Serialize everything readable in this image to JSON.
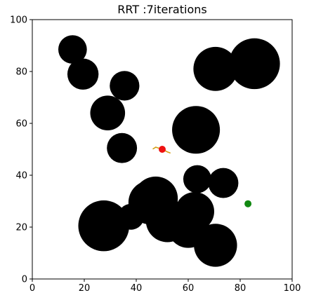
{
  "chart_data": {
    "type": "scatter",
    "title": "RRT :7iterations",
    "xlabel": "",
    "ylabel": "",
    "xlim": [
      0,
      100
    ],
    "ylim": [
      0,
      100
    ],
    "xticks": [
      0,
      20,
      40,
      60,
      80,
      100
    ],
    "yticks": [
      0,
      20,
      40,
      60,
      80,
      100
    ],
    "tick_labels": {
      "x": [
        "0",
        "20",
        "40",
        "60",
        "80",
        "100"
      ],
      "y": [
        "0",
        "20",
        "40",
        "60",
        "80",
        "100"
      ]
    },
    "grid": false,
    "obstacles": [
      {
        "x": 15.5,
        "y": 88.5,
        "r": 5.5
      },
      {
        "x": 19.5,
        "y": 79.0,
        "r": 6.0
      },
      {
        "x": 35.5,
        "y": 74.5,
        "r": 5.7
      },
      {
        "x": 29.0,
        "y": 64.0,
        "r": 6.7
      },
      {
        "x": 34.5,
        "y": 50.5,
        "r": 5.8
      },
      {
        "x": 70.5,
        "y": 81.0,
        "r": 8.5
      },
      {
        "x": 85.5,
        "y": 83.0,
        "r": 9.8
      },
      {
        "x": 63.0,
        "y": 57.5,
        "r": 9.2
      },
      {
        "x": 63.5,
        "y": 38.5,
        "r": 5.4
      },
      {
        "x": 73.5,
        "y": 37.0,
        "r": 5.8
      },
      {
        "x": 27.5,
        "y": 20.5,
        "r": 9.8
      },
      {
        "x": 38.0,
        "y": 24.0,
        "r": 5.0
      },
      {
        "x": 45.5,
        "y": 29.5,
        "r": 8.5
      },
      {
        "x": 47.5,
        "y": 31.0,
        "r": 8.5
      },
      {
        "x": 52.0,
        "y": 22.5,
        "r": 8.3
      },
      {
        "x": 60.0,
        "y": 20.0,
        "r": 8.0
      },
      {
        "x": 62.5,
        "y": 26.0,
        "r": 7.5
      },
      {
        "x": 70.5,
        "y": 13.0,
        "r": 8.3
      }
    ],
    "start": {
      "x": 50.0,
      "y": 50.0,
      "color": "#ee1111"
    },
    "goal": {
      "x": 83.0,
      "y": 29.0,
      "color": "#118811"
    },
    "tree_edges": [
      {
        "x1": 50.0,
        "y1": 50.0,
        "x2": 47.5,
        "y2": 50.8
      },
      {
        "x1": 47.5,
        "y1": 50.8,
        "x2": 46.5,
        "y2": 50.2
      },
      {
        "x1": 50.0,
        "y1": 50.0,
        "x2": 52.0,
        "y2": 49.0
      },
      {
        "x1": 52.0,
        "y1": 49.0,
        "x2": 53.0,
        "y2": 48.6
      }
    ],
    "tree_color": "#d4a017"
  }
}
